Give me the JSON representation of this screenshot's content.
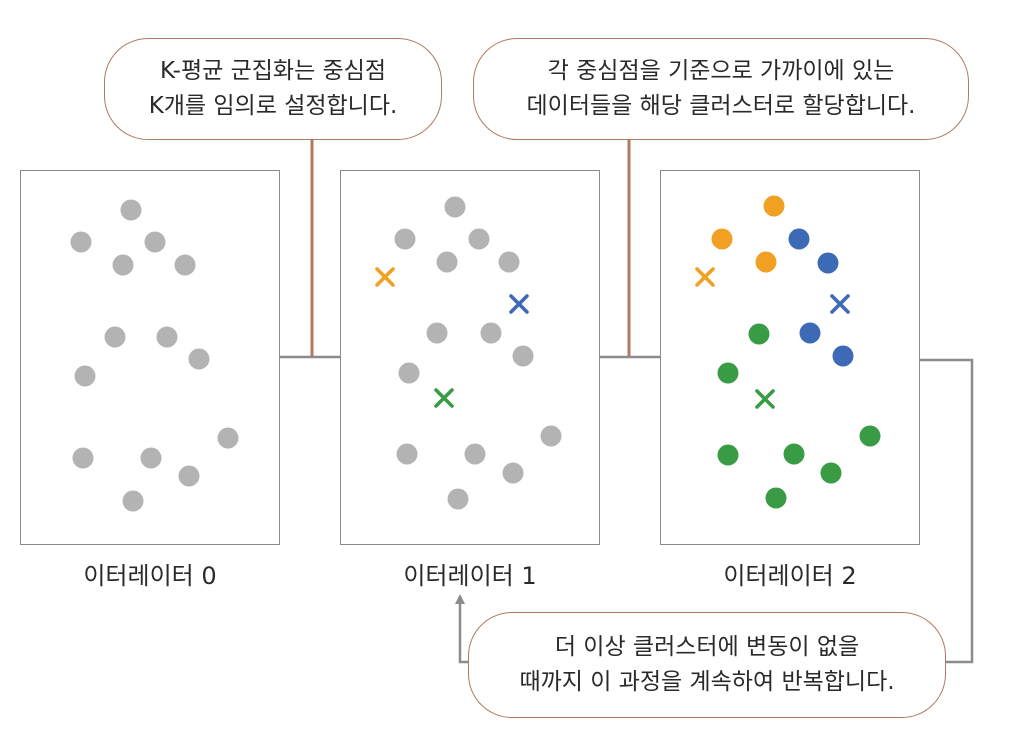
{
  "colors": {
    "gray": "#b3b3b4",
    "orange": "#f2a024",
    "blue": "#3d6ab7",
    "green": "#3a9b45",
    "bubble_border": "#b07a5e",
    "connector": "#b07a5e",
    "arrow": "#8c8c8c"
  },
  "callouts": {
    "init": [
      "K-평균 군집화는 중심점",
      "K개를 임의로 설정합니다."
    ],
    "assign": [
      "각 중심점을 기준으로 가까이에 있는",
      "데이터들을 해당 클러스터로 할당합니다."
    ],
    "repeat": [
      "더 이상 클러스터에 변동이 없을",
      "때까지 이 과정을 계속하여 반복합니다."
    ]
  },
  "panels": [
    {
      "label": "이터레이터 0",
      "centroids": [],
      "points": [
        {
          "c": "gray"
        },
        {
          "c": "gray"
        },
        {
          "c": "gray"
        },
        {
          "c": "gray"
        },
        {
          "c": "gray"
        },
        {
          "c": "gray"
        },
        {
          "c": "gray"
        },
        {
          "c": "gray"
        },
        {
          "c": "gray"
        },
        {
          "c": "gray"
        },
        {
          "c": "gray"
        },
        {
          "c": "gray"
        },
        {
          "c": "gray"
        },
        {
          "c": "gray"
        }
      ]
    },
    {
      "label": "이터레이터 1",
      "centroids": [
        {
          "c": "orange"
        },
        {
          "c": "blue"
        },
        {
          "c": "green"
        }
      ],
      "points": [
        {
          "c": "gray"
        },
        {
          "c": "gray"
        },
        {
          "c": "gray"
        },
        {
          "c": "gray"
        },
        {
          "c": "gray"
        },
        {
          "c": "gray"
        },
        {
          "c": "gray"
        },
        {
          "c": "gray"
        },
        {
          "c": "gray"
        },
        {
          "c": "gray"
        },
        {
          "c": "gray"
        },
        {
          "c": "gray"
        },
        {
          "c": "gray"
        },
        {
          "c": "gray"
        }
      ]
    },
    {
      "label": "이터레이터 2",
      "centroids": [
        {
          "c": "orange"
        },
        {
          "c": "blue"
        },
        {
          "c": "green"
        }
      ],
      "points": [
        {
          "c": "orange"
        },
        {
          "c": "orange"
        },
        {
          "c": "orange"
        },
        {
          "c": "blue"
        },
        {
          "c": "blue"
        },
        {
          "c": "blue"
        },
        {
          "c": "blue"
        },
        {
          "c": "green"
        },
        {
          "c": "green"
        },
        {
          "c": "green"
        },
        {
          "c": "green"
        },
        {
          "c": "green"
        },
        {
          "c": "green"
        },
        {
          "c": "green"
        }
      ]
    }
  ]
}
